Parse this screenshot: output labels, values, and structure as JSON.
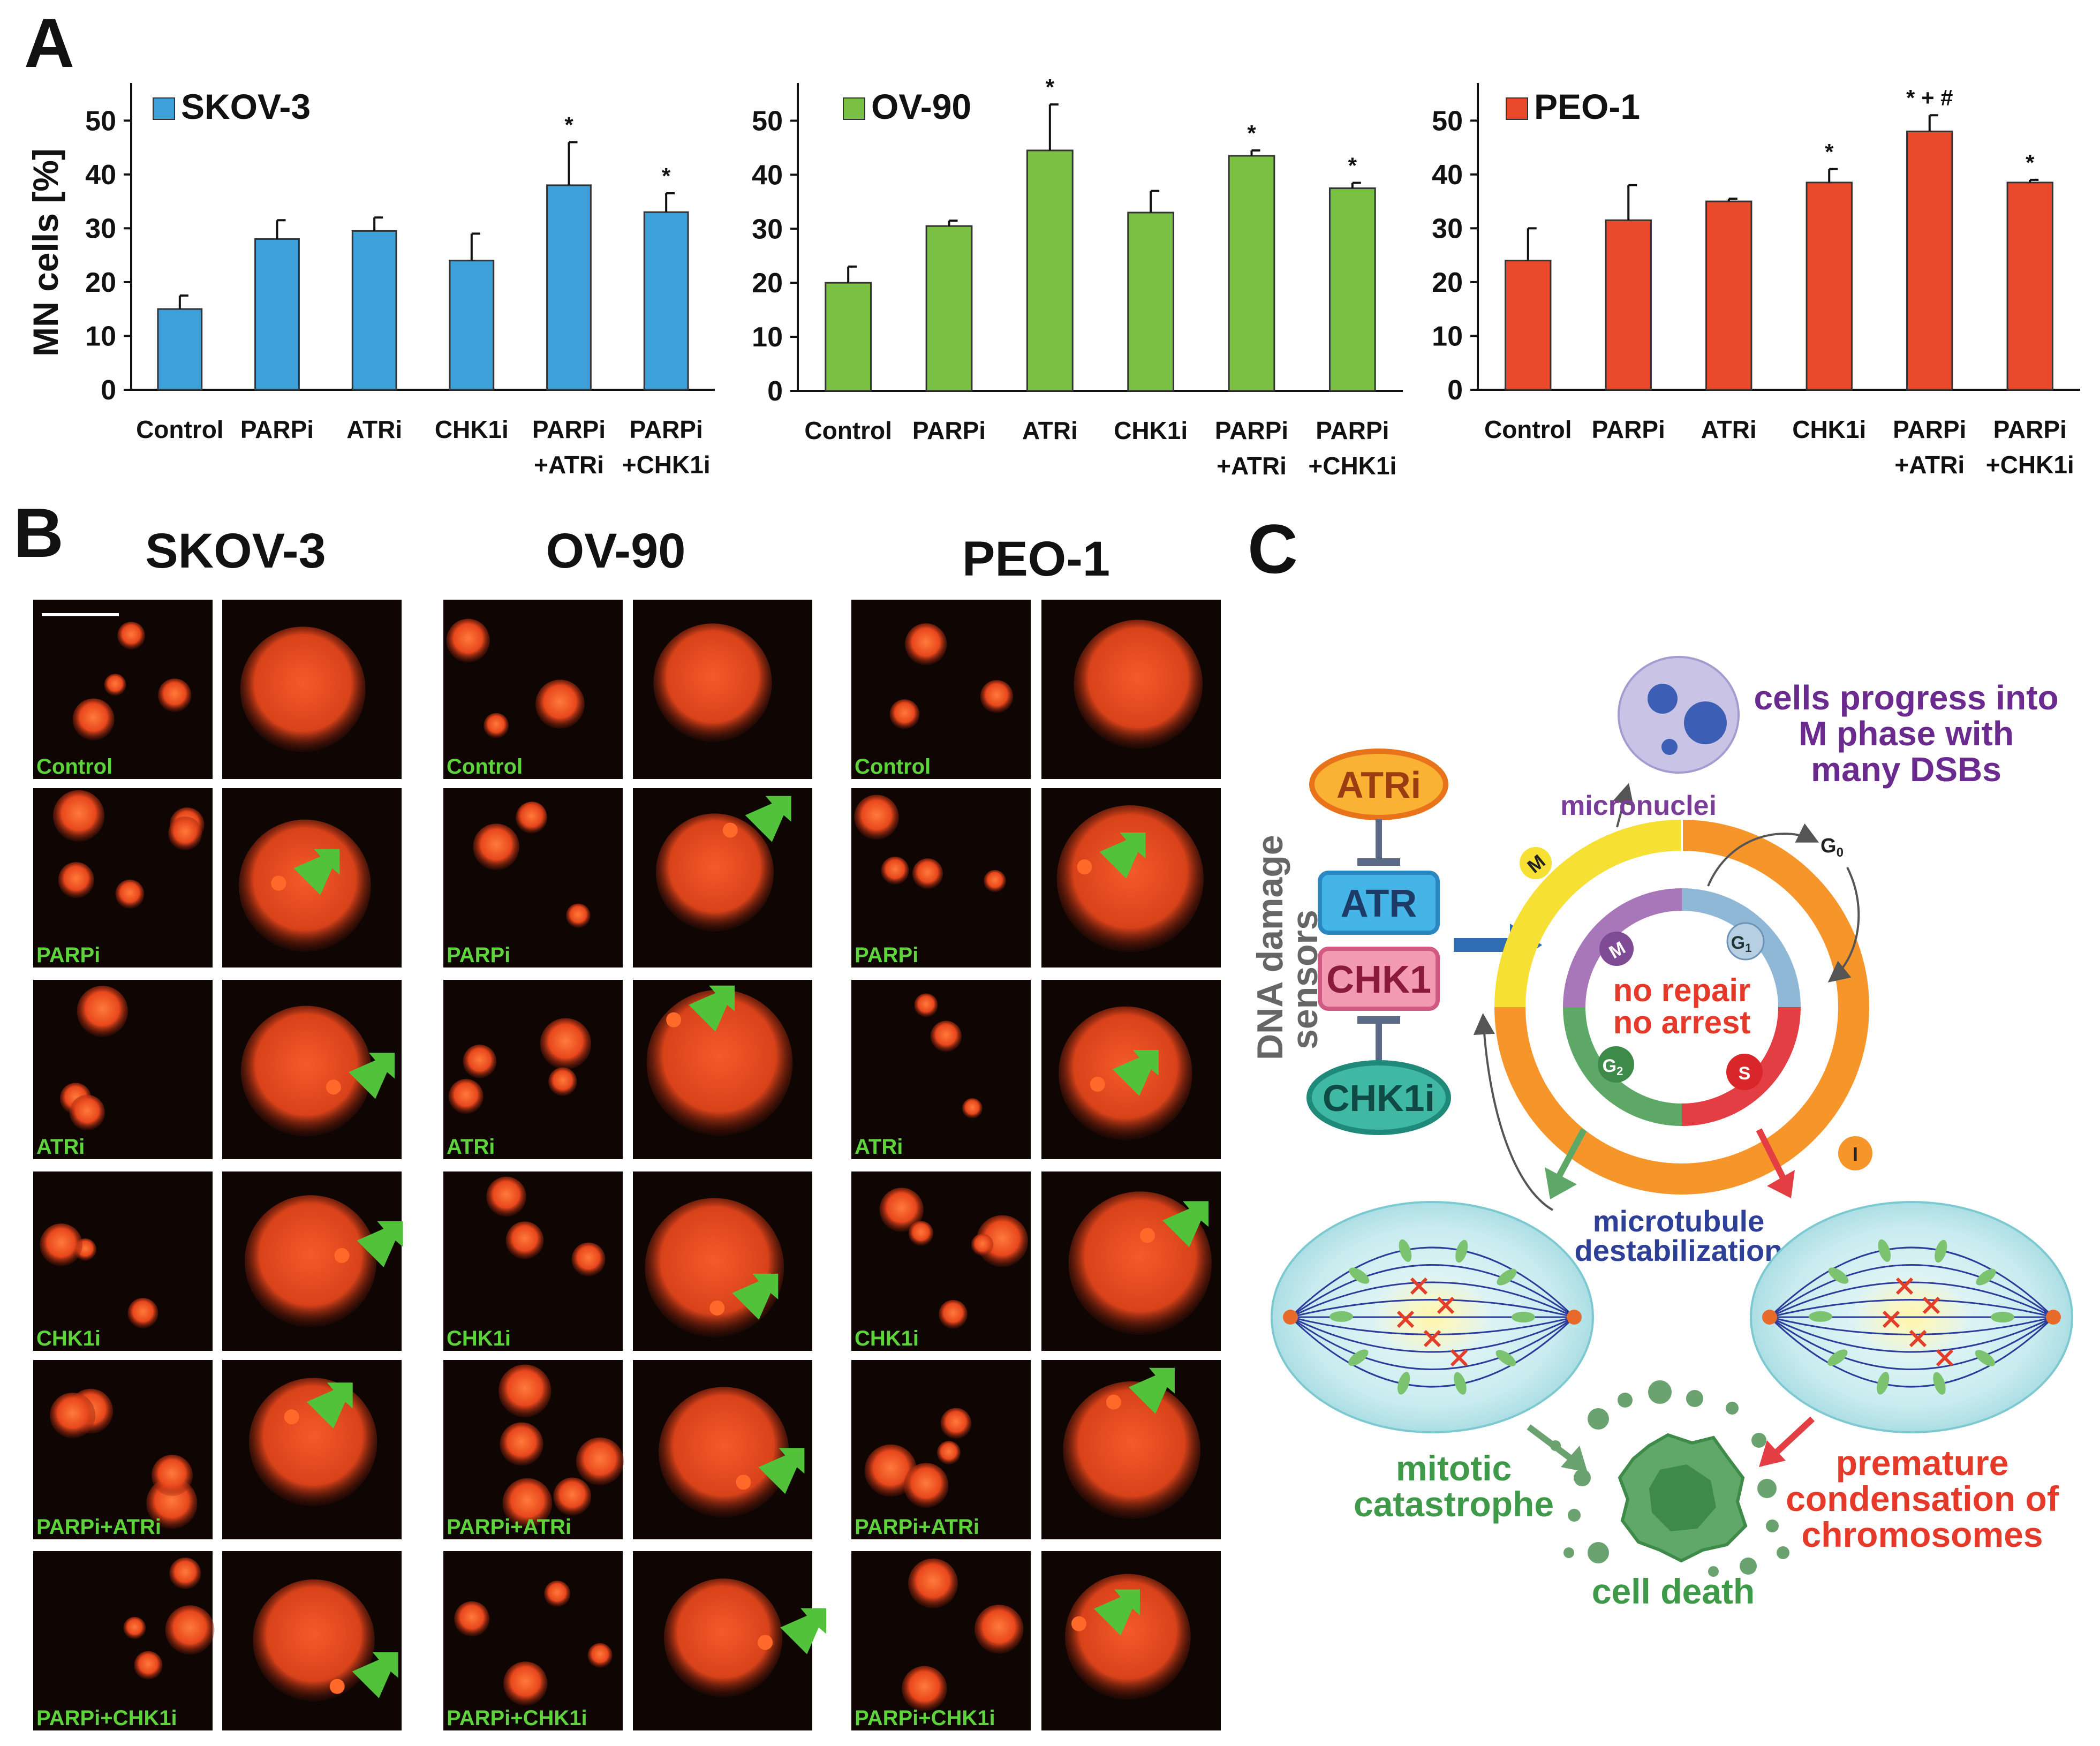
{
  "panel_labels": {
    "a": "A",
    "b": "B",
    "c": "C"
  },
  "chart_data": [
    {
      "type": "bar",
      "title": "SKOV-3",
      "color": "#3ea0d9",
      "ylabel": "MN cells [%]",
      "ylim": [
        0,
        55
      ],
      "yticks": [
        "0",
        "10",
        "20",
        "30",
        "40",
        "50"
      ],
      "categories": [
        "Control",
        [
          "PARPi"
        ],
        [
          "ATRi"
        ],
        [
          "CHK1i"
        ],
        [
          "PARPi",
          "+ATRi"
        ],
        [
          "PARPi",
          "+CHK1i"
        ]
      ],
      "values": [
        15,
        28,
        29.5,
        24,
        38,
        33
      ],
      "errors": [
        2.5,
        3.5,
        2.5,
        5,
        8,
        3.5
      ],
      "annotations": [
        "",
        "",
        "",
        "",
        "*",
        "*"
      ]
    },
    {
      "type": "bar",
      "title": "OV-90",
      "color": "#7ac143",
      "ylabel": "",
      "ylim": [
        0,
        55
      ],
      "yticks": [
        "0",
        "10",
        "20",
        "30",
        "40",
        "50"
      ],
      "categories": [
        "Control",
        [
          "PARPi"
        ],
        [
          "ATRi"
        ],
        [
          "CHK1i"
        ],
        [
          "PARPi",
          "+ATRi"
        ],
        [
          "PARPi",
          "+CHK1i"
        ]
      ],
      "values": [
        20,
        30.5,
        44.5,
        33,
        43.5,
        37.5
      ],
      "errors": [
        3,
        1,
        8.5,
        4,
        1,
        1
      ],
      "annotations": [
        "",
        "",
        "*",
        "",
        "*",
        "*"
      ]
    },
    {
      "type": "bar",
      "title": "PEO-1",
      "color": "#ea4a2b",
      "ylabel": "",
      "ylim": [
        0,
        55
      ],
      "yticks": [
        "0",
        "10",
        "20",
        "30",
        "40",
        "50"
      ],
      "categories": [
        "Control",
        [
          "PARPi"
        ],
        [
          "ATRi"
        ],
        [
          "CHK1i"
        ],
        [
          "PARPi",
          "+ATRi"
        ],
        [
          "PARPi",
          "+CHK1i"
        ]
      ],
      "values": [
        24,
        31.5,
        35,
        38.5,
        48,
        38.5
      ],
      "errors": [
        6,
        6.5,
        0.5,
        2.5,
        3,
        0.5
      ],
      "annotations": [
        "",
        "",
        "",
        "*",
        "* + #",
        "*"
      ]
    }
  ],
  "micro": {
    "lines": [
      "SKOV-3",
      "OV-90",
      "PEO-1"
    ],
    "treatments": [
      "Control",
      "PARPi",
      "ATRi",
      "CHK1i",
      "PARPi+ATRi",
      "PARPi+CHK1i"
    ]
  },
  "diagram": {
    "atri": "ATRi",
    "atr": "ATR",
    "chk1": "CHK1",
    "chk1i": "CHK1i",
    "sensors_line1": "DNA damage",
    "sensors_line2": "sensors",
    "progress_line1": "cells progress into",
    "progress_line2": "M phase with",
    "progress_line3": "many DSBs",
    "micronuclei": "micronuclei",
    "no_repair": "no repair",
    "no_arrest": "no arrest",
    "phase_m_outer": "M",
    "phase_i": "I",
    "phase_g0": "G",
    "phase_g0_sub": "0",
    "phase_m": "M",
    "phase_g1": "G",
    "phase_g1_sub": "1",
    "phase_g2": "G",
    "phase_g2_sub": "2",
    "phase_s": "S",
    "microtubule_line1": "microtubule",
    "microtubule_line2": "destabilization",
    "mitotic_line1": "mitotic",
    "mitotic_line2": "catastrophe",
    "premature_line1": "premature",
    "premature_line2": "condensation of",
    "premature_line3": "chromosomes",
    "cell_death": "cell death"
  }
}
